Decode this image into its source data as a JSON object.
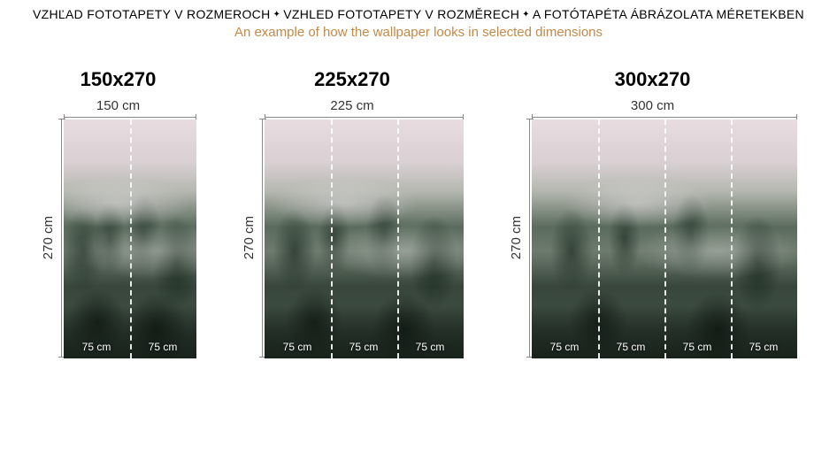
{
  "header": {
    "multiLang": [
      "VZHĽAD FOTOTAPETY V ROZMEROCH",
      "VZHLED FOTOTAPETY V ROZMĚRECH",
      "A FOTÓTAPÉTA ÁBRÁZOLATA MÉRETEKBEN"
    ],
    "subtitle": "An example of how the wallpaper looks in selected dimensions",
    "subtitleColor": "#c28a4a"
  },
  "segmentWidthPx": 75,
  "imageHeightPx": 270,
  "segmentLabel": "75 cm",
  "heightLabel": "270 cm",
  "panels": [
    {
      "title": "150x270",
      "widthLabel": "150 cm",
      "segments": 2,
      "widthPx": 150
    },
    {
      "title": "225x270",
      "widthLabel": "225 cm",
      "segments": 3,
      "widthPx": 225
    },
    {
      "title": "300x270",
      "widthLabel": "300 cm",
      "segments": 4,
      "widthPx": 300
    }
  ],
  "styling": {
    "background": "#ffffff",
    "titleFontSize": 22,
    "labelFontSize": 15,
    "segLabelFontSize": 12,
    "dividerColor": "#ffffff",
    "ruleColor": "#888888"
  }
}
